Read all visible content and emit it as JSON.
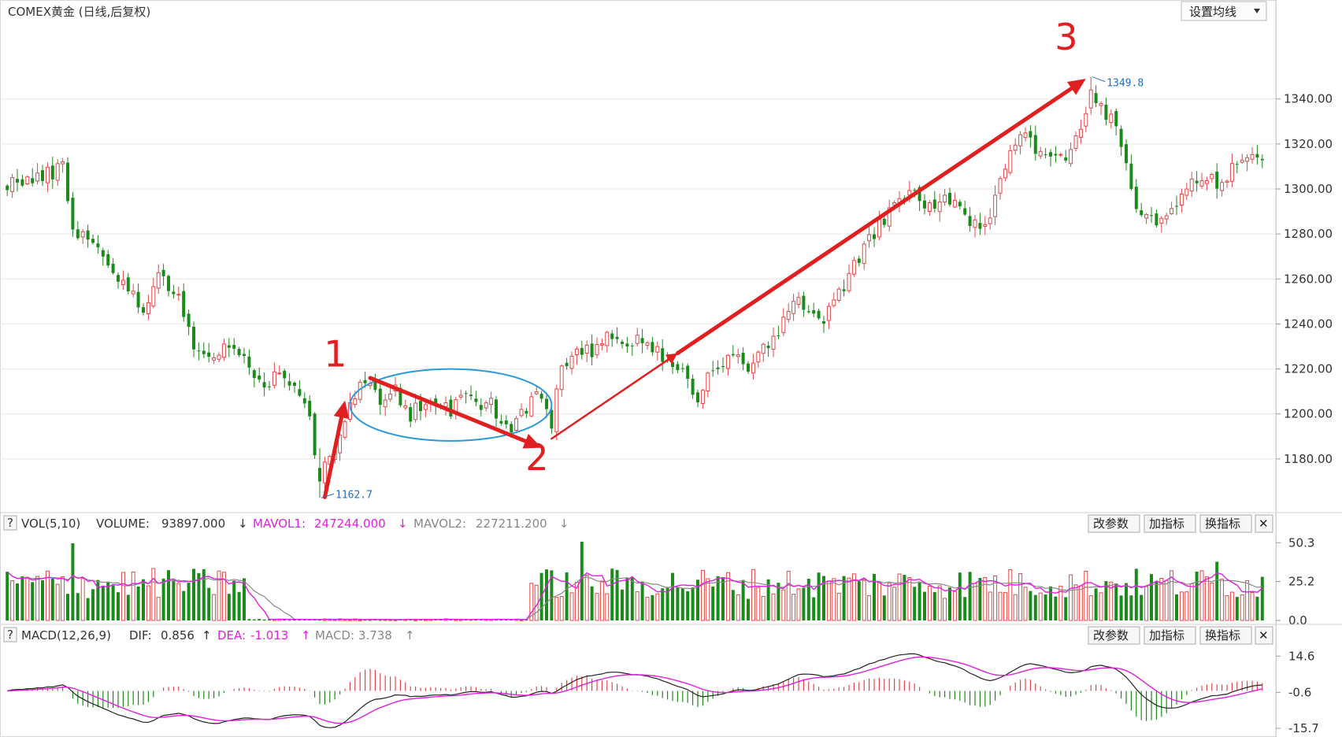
{
  "header": {
    "title": "COMEX黄金 (日线,后复权)",
    "ma_button": "设置均线"
  },
  "colors": {
    "up": "#e04848",
    "down": "#1a8a1a",
    "grid": "#e6e6e6",
    "mavol1": "#e020e0",
    "mavol2": "#888888",
    "dif": "#222222",
    "dea": "#e020e0",
    "annotation": "#e02020",
    "ellipse": "#2a9ad8",
    "ext_label": "#1e6ec8"
  },
  "chart_data": [
    {
      "type": "candlestick",
      "title": "COMEX黄金 (日线,后复权)",
      "y_ticks": [
        "1340.00",
        "1320.00",
        "1300.00",
        "1280.00",
        "1260.00",
        "1240.00",
        "1220.00",
        "1200.00",
        "1180.00"
      ],
      "y_tick_values": [
        1340,
        1320,
        1300,
        1280,
        1260,
        1240,
        1220,
        1200,
        1180
      ],
      "ylim": [
        1160,
        1370
      ],
      "num_bars": 250,
      "high_label": "1349.8",
      "low_label": "1162.7",
      "annotations": [
        {
          "label": "1",
          "bar": 65,
          "price": 1221
        },
        {
          "label": "2",
          "bar": 105,
          "price": 1175
        },
        {
          "label": "3",
          "bar": 210,
          "price": 1362
        }
      ],
      "arrows": [
        {
          "from": [
            63,
            1163
          ],
          "to": [
            67,
            1206
          ],
          "width": "thick"
        },
        {
          "from": [
            72,
            1216
          ],
          "to": [
            106,
            1185
          ],
          "width": "thick"
        },
        {
          "from": [
            108,
            1189
          ],
          "to": [
            133,
            1227
          ],
          "width": "thin"
        },
        {
          "from": [
            133,
            1227
          ],
          "to": [
            214,
            1349
          ],
          "width": "thick"
        }
      ],
      "ellipse": {
        "bar_center": 88,
        "price_center": 1204,
        "bar_radius": 20,
        "price_radius": 16
      },
      "keypoints": [
        [
          0,
          1303
        ],
        [
          6,
          1304
        ],
        [
          11,
          1310
        ],
        [
          13,
          1283
        ],
        [
          17,
          1276
        ],
        [
          20,
          1268
        ],
        [
          24,
          1254
        ],
        [
          27,
          1247
        ],
        [
          30,
          1262
        ],
        [
          32,
          1258
        ],
        [
          34,
          1250
        ],
        [
          37,
          1232
        ],
        [
          40,
          1224
        ],
        [
          43,
          1230
        ],
        [
          46,
          1226
        ],
        [
          49,
          1216
        ],
        [
          52,
          1214
        ],
        [
          54,
          1220
        ],
        [
          57,
          1211
        ],
        [
          60,
          1198
        ],
        [
          62,
          1172
        ],
        [
          64,
          1182
        ],
        [
          67,
          1198
        ],
        [
          69,
          1208
        ],
        [
          71,
          1214
        ],
        [
          74,
          1205
        ],
        [
          77,
          1210
        ],
        [
          80,
          1200
        ],
        [
          84,
          1208
        ],
        [
          88,
          1202
        ],
        [
          91,
          1212
        ],
        [
          94,
          1201
        ],
        [
          96,
          1206
        ],
        [
          98,
          1196
        ],
        [
          100,
          1191
        ],
        [
          102,
          1201
        ],
        [
          104,
          1206
        ],
        [
          106,
          1208
        ],
        [
          108,
          1194
        ],
        [
          110,
          1222
        ],
        [
          113,
          1230
        ],
        [
          116,
          1226
        ],
        [
          119,
          1236
        ],
        [
          122,
          1229
        ],
        [
          125,
          1234
        ],
        [
          128,
          1228
        ],
        [
          131,
          1225
        ],
        [
          133,
          1222
        ],
        [
          135,
          1215
        ],
        [
          137,
          1206
        ],
        [
          139,
          1216
        ],
        [
          142,
          1222
        ],
        [
          145,
          1226
        ],
        [
          148,
          1220
        ],
        [
          151,
          1232
        ],
        [
          154,
          1241
        ],
        [
          157,
          1252
        ],
        [
          160,
          1245
        ],
        [
          162,
          1240
        ],
        [
          165,
          1254
        ],
        [
          168,
          1265
        ],
        [
          171,
          1277
        ],
        [
          174,
          1286
        ],
        [
          177,
          1296
        ],
        [
          180,
          1298
        ],
        [
          183,
          1292
        ],
        [
          186,
          1295
        ],
        [
          189,
          1290
        ],
        [
          192,
          1283
        ],
        [
          194,
          1281
        ],
        [
          196,
          1300
        ],
        [
          199,
          1318
        ],
        [
          202,
          1325
        ],
        [
          205,
          1316
        ],
        [
          208,
          1312
        ],
        [
          211,
          1316
        ],
        [
          213,
          1328
        ],
        [
          215,
          1345
        ],
        [
          217,
          1336
        ],
        [
          219,
          1330
        ],
        [
          221,
          1320
        ],
        [
          223,
          1300
        ],
        [
          225,
          1286
        ],
        [
          228,
          1285
        ],
        [
          231,
          1290
        ],
        [
          234,
          1300
        ],
        [
          237,
          1305
        ],
        [
          240,
          1302
        ],
        [
          243,
          1308
        ],
        [
          246,
          1314
        ],
        [
          249,
          1316
        ]
      ]
    },
    {
      "type": "bar",
      "title": "VOL(5,10)",
      "legend": {
        "name": "VOL(5,10)",
        "volume_label": "VOLUME:",
        "volume": "93897.000",
        "mavol1_label": "MAVOL1:",
        "mavol1": "247244.000",
        "mavol2_label": "MAVOL2:",
        "mavol2": "227211.200"
      },
      "y_ticks": [
        "50.3",
        "25.2",
        "0.0"
      ],
      "y_tick_values": [
        50.3,
        25.2,
        0.0
      ],
      "ylim": [
        0,
        52
      ],
      "low_volume_segment": [
        48,
        103
      ]
    },
    {
      "type": "bar",
      "title": "MACD(12,26,9)",
      "legend": {
        "name": "MACD(12,26,9)",
        "dif_label": "DIF:",
        "dif": "0.856",
        "dea_label": "DEA:",
        "dea": "-1.013",
        "macd_label": "MACD:",
        "macd": "3.738"
      },
      "y_ticks": [
        "14.6",
        "-0.6",
        "-15.7"
      ],
      "y_tick_values": [
        14.6,
        -0.6,
        -15.7
      ],
      "ylim": [
        -18,
        17
      ]
    }
  ],
  "panel_buttons": {
    "change_params": "改参数",
    "add_indicator": "加指标",
    "switch_indicator": "换指标",
    "help": "?",
    "close": "✕"
  }
}
